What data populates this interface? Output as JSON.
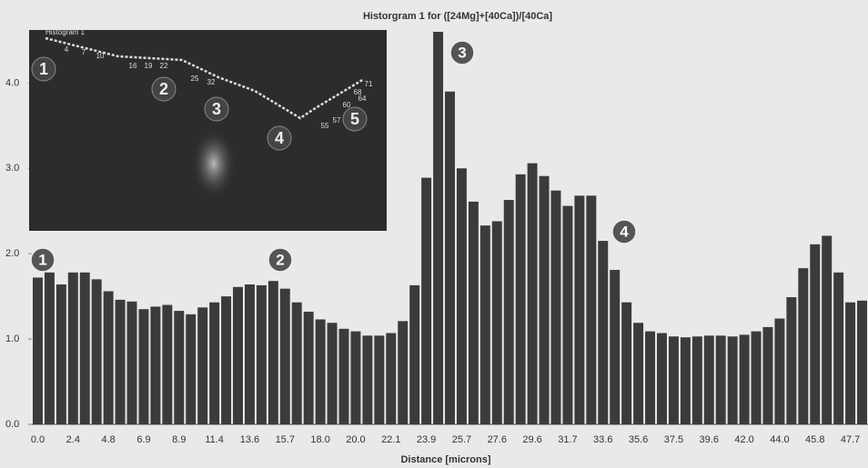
{
  "chart_data": {
    "type": "bar",
    "title": "Historgram 1 for ([24Mg]+[40Ca])/[40Ca]",
    "x_label": "Distance [microns]",
    "categories": [
      "0.0",
      null,
      null,
      "2.4",
      null,
      null,
      "4.8",
      null,
      null,
      "6.9",
      null,
      null,
      "8.9",
      null,
      null,
      "11.4",
      null,
      null,
      "13.6",
      null,
      null,
      "15.7",
      null,
      null,
      "18.0",
      null,
      null,
      "20.0",
      null,
      null,
      "22.1",
      null,
      null,
      "23.9",
      null,
      null,
      "25.7",
      null,
      null,
      "27.6",
      null,
      null,
      "29.6",
      null,
      null,
      "31.7",
      null,
      null,
      "33.6",
      null,
      null,
      "35.6",
      null,
      null,
      "37.5",
      null,
      null,
      "39.6",
      null,
      null,
      "42.0",
      null,
      null,
      "44.0",
      null,
      null,
      "45.8",
      null,
      null,
      "47.7",
      null
    ],
    "values": [
      1.72,
      1.78,
      1.64,
      1.78,
      1.78,
      1.7,
      1.56,
      1.46,
      1.44,
      1.35,
      1.38,
      1.4,
      1.33,
      1.29,
      1.37,
      1.43,
      1.5,
      1.61,
      1.64,
      1.63,
      1.68,
      1.59,
      1.43,
      1.32,
      1.23,
      1.19,
      1.12,
      1.09,
      1.04,
      1.04,
      1.07,
      1.21,
      1.63,
      2.89,
      4.6,
      3.9,
      3.0,
      2.61,
      2.33,
      2.38,
      2.63,
      2.93,
      3.06,
      2.91,
      2.74,
      2.56,
      2.68,
      2.68,
      2.15,
      1.81,
      1.43,
      1.19,
      1.09,
      1.07,
      1.03,
      1.02,
      1.03,
      1.04,
      1.04,
      1.03,
      1.05,
      1.09,
      1.14,
      1.24,
      1.49,
      1.83,
      2.11,
      2.21,
      1.78,
      1.43,
      1.45
    ],
    "color": "#3b3b3b",
    "ylim": [
      0,
      4.6
    ],
    "yticks": [
      {
        "value": 0,
        "label": "0.0"
      },
      {
        "value": 1,
        "label": "1.0"
      },
      {
        "value": 2,
        "label": "2.0"
      },
      {
        "value": 3,
        "label": "3.0"
      },
      {
        "value": 4,
        "label": "4.0"
      }
    ],
    "markers": [
      "1",
      "2",
      "3",
      "4"
    ],
    "inset": {
      "title": "Histogram 1",
      "point_labels": [
        "4",
        "7",
        "10",
        "16",
        "19",
        "22",
        "25",
        "32",
        "55",
        "57",
        "60",
        "64",
        "68",
        "71"
      ],
      "markers": [
        "1",
        "2",
        "3",
        "4",
        "5"
      ]
    }
  }
}
